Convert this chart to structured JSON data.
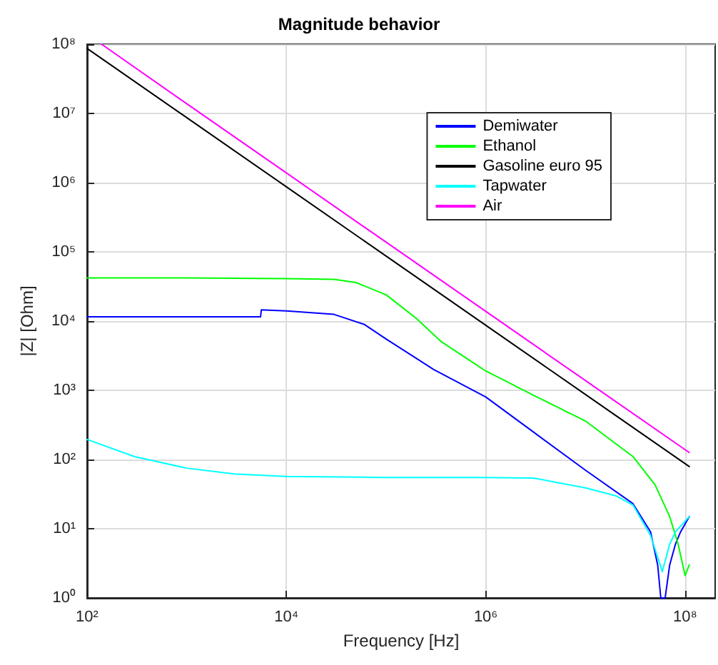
{
  "chart_data": {
    "type": "line",
    "title": "Magnitude behavior",
    "xlabel": "Frequency [Hz]",
    "ylabel": "|Z| [Ohm]",
    "log": "xy",
    "grid": true,
    "legend": "top right",
    "marker": "none",
    "line_style": "solid",
    "xlim": [
      100,
      200000000
    ],
    "ylim": [
      1,
      100000000
    ],
    "xticks": [
      {
        "value": 100,
        "label": "10²"
      },
      {
        "value": 10000,
        "label": "10⁴"
      },
      {
        "value": 1000000,
        "label": "10⁶"
      },
      {
        "value": 100000000,
        "label": "10⁸"
      }
    ],
    "yticks": [
      {
        "value": 1,
        "label": "10⁰"
      },
      {
        "value": 10,
        "label": "10¹"
      },
      {
        "value": 100,
        "label": "10²"
      },
      {
        "value": 1000,
        "label": "10³"
      },
      {
        "value": 10000,
        "label": "10⁴"
      },
      {
        "value": 100000,
        "label": "10⁵"
      },
      {
        "value": 1000000,
        "label": "10⁶"
      },
      {
        "value": 10000000,
        "label": "10⁷"
      },
      {
        "value": 100000000,
        "label": "10⁸"
      }
    ],
    "series": [
      {
        "name": "Demiwater",
        "color": "#0000ff",
        "x": [
          100,
          1000,
          5500,
          5600,
          10000,
          30000,
          60000,
          100000,
          300000,
          1000000,
          3000000,
          10000000,
          30000000,
          45000000,
          53000000,
          57000000,
          63000000,
          70000000,
          80000000,
          90000000,
          110000000
        ],
        "values": [
          11500,
          11500,
          11500,
          14500,
          14000,
          12500,
          9000,
          5500,
          2000,
          800,
          250,
          70,
          23,
          9,
          3,
          1,
          1,
          3,
          6,
          9,
          15
        ]
      },
      {
        "name": "Ethanol",
        "color": "#00ff00",
        "x": [
          100,
          1000,
          10000,
          30000,
          50000,
          100000,
          200000,
          360000,
          1000000,
          3000000,
          10000000,
          30000000,
          50000000,
          70000000,
          85000000,
          100000000,
          110000000
        ],
        "values": [
          42000,
          42000,
          41000,
          40000,
          36000,
          24000,
          11000,
          5000,
          1900,
          850,
          360,
          110,
          43,
          15,
          6,
          2.1,
          3
        ]
      },
      {
        "name": "Gasoline euro 95",
        "color": "#000000",
        "x": [
          100,
          1000,
          10000,
          100000,
          1000000,
          10000000,
          110000000
        ],
        "values": [
          87000000,
          8700000,
          870000,
          87000,
          8700,
          870,
          79
        ]
      },
      {
        "name": "Tapwater",
        "color": "#00ffff",
        "x": [
          100,
          300,
          1000,
          3000,
          10000,
          100000,
          1000000,
          3000000,
          10000000,
          20000000,
          30000000,
          45000000,
          59000000,
          70000000,
          80000000,
          110000000
        ],
        "values": [
          195,
          110,
          75,
          62,
          57,
          55,
          55,
          54,
          39,
          30,
          22,
          8,
          2.4,
          6,
          9,
          15
        ]
      },
      {
        "name": "Air",
        "color": "#ff00ff",
        "x": [
          140,
          1000,
          10000,
          100000,
          1000000,
          10000000,
          110000000
        ],
        "values": [
          100000000,
          13800000,
          1380000,
          138000,
          13800,
          1380,
          126
        ]
      }
    ]
  }
}
